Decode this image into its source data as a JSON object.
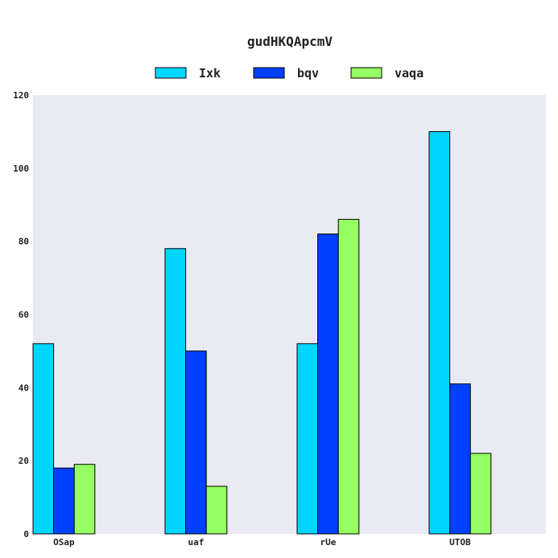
{
  "chart_data": {
    "type": "bar",
    "title": "gudHKQApcmV",
    "xlabel": "",
    "ylabel": "",
    "categories": [
      "OSap",
      "uaf",
      "rUe",
      "UTOB"
    ],
    "series": [
      {
        "name": "Ixk",
        "color": "#00d5ff",
        "values": [
          52,
          78,
          52,
          110
        ]
      },
      {
        "name": "bqv",
        "color": "#0040ff",
        "values": [
          18,
          50,
          82,
          41
        ]
      },
      {
        "name": "vaqa",
        "color": "#96ff64",
        "values": [
          19,
          13,
          86,
          22
        ]
      }
    ],
    "ylim": [
      0,
      120
    ],
    "yticks": [
      0,
      20,
      40,
      60,
      80,
      100,
      120
    ],
    "grid": false,
    "legend_position": "top",
    "plot_background": "#eaeaf2",
    "bar_edge_color": "#000000"
  }
}
